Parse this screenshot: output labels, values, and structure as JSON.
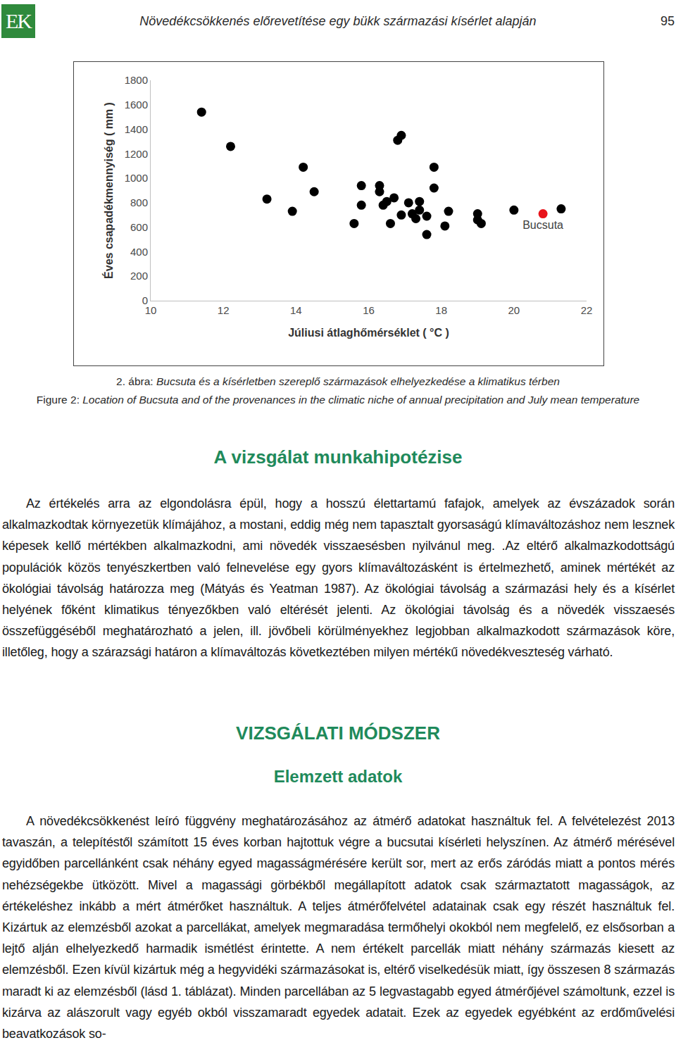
{
  "header": {
    "logo": "EK",
    "title": "Növedékcsökkenés előrevetítése egy bükk származási kísérlet alapján",
    "page": "95"
  },
  "chart_data": {
    "type": "scatter",
    "xlabel": "Júliusi átlaghőmérséklet ( °C )",
    "ylabel": "Éves csapadékmennyiség ( mm )",
    "xlim": [
      10,
      22
    ],
    "xticks": [
      10,
      12,
      14,
      16,
      18,
      20,
      22
    ],
    "ylim": [
      0,
      1800
    ],
    "yticks": [
      0,
      200,
      400,
      600,
      800,
      1000,
      1200,
      1400,
      1600,
      1800
    ],
    "grid": false,
    "marker": "circle",
    "series": [
      {
        "color": "#000000",
        "x": [
          11.4,
          12.2,
          13.2,
          13.9,
          14.2,
          14.5,
          15.6,
          15.8,
          15.8,
          16.3,
          16.3,
          16.4,
          16.5,
          16.6,
          16.7,
          16.8,
          16.9,
          16.9,
          17.1,
          17.2,
          17.3,
          17.4,
          17.4,
          17.6,
          17.6,
          17.8,
          17.8,
          18.1,
          18.2,
          19.0,
          19.0,
          19.1,
          20.0,
          21.3
        ],
        "y": [
          1540,
          1260,
          830,
          730,
          1090,
          890,
          630,
          940,
          780,
          940,
          890,
          780,
          810,
          630,
          840,
          1310,
          1350,
          700,
          800,
          710,
          670,
          810,
          740,
          690,
          540,
          1090,
          920,
          610,
          730,
          710,
          660,
          630,
          740,
          750
        ]
      },
      {
        "name": "Bucsuta",
        "color": "#e8141b",
        "x": [
          20.8
        ],
        "y": [
          710
        ]
      }
    ]
  },
  "caption": {
    "hu": {
      "label": "2. ábra:",
      "text": "Bucsuta és a kísérletben szereplő származások elhelyezkedése a klimatikus térben"
    },
    "en": {
      "label": "Figure 2:",
      "text": "Location of Bucsuta and of the provenances in the climatic niche of annual precipitation and July mean temperature"
    }
  },
  "sections": [
    {
      "heading": "A vizsgálat munkahipotézise",
      "paragraphs": [
        "Az értékelés arra az elgondolásra épül, hogy a hosszú élettartamú fafajok, amelyek az évszázadok során alkalmazkodtak környezetük klímájához, a mostani, eddig még nem tapasztalt gyorsaságú klímaváltozáshoz nem lesznek képesek kellő mértékben alkalmazkodni, ami növedék visszaesésben nyilvánul meg. .Az eltérő alkalmazkodottságú populációk közös tenyészkertben való felnevelése egy gyors klímaváltozásként is értelmezhető, aminek mértékét az ökológiai távolság határozza meg (Mátyás és Yeatman 1987). Az ökológiai távolság a származási hely és a kísérlet helyének főként klimatikus tényezőkben való eltérését jelenti. Az ökológiai távolság és a növedék visszaesés összefüggéséből meghatározható a jelen, ill. jövőbeli körülményekhez legjobban alkalmazkodott származások köre, illetőleg, hogy a szárazsági határon a klímaváltozás következtében milyen mértékű növedékveszteség várható."
      ]
    },
    {
      "heading": "VIZSGÁLATI MÓDSZER",
      "subheading": "Elemzett adatok",
      "paragraphs": [
        "A növedékcsökkenést leíró függvény meghatározásához az átmérő adatokat használtuk fel. A felvételezést 2013 tavaszán, a telepítéstől számított 15 éves korban hajtottuk végre a bucsutai kísérleti helyszínen. Az átmérő mérésével egyidőben parcellánként csak néhány egyed magasságmérésére került sor, mert az erős záródás miatt a pontos mérés nehézségekbe ütközött. Mivel a magassági görbékből megállapított adatok csak származtatott magasságok, az értékeléshez inkább a mért átmérőket használtuk. A teljes átmérőfelvétel adatainak csak egy részét használtuk fel. Kizártuk az elemzésből azokat a parcellákat, amelyek megmaradása termőhelyi okokból nem megfelelő, ez elsősorban a lejtő alján elhelyezkedő harmadik ismétlést érintette. A nem értékelt parcellák miatt néhány származás kiesett az elemzésből. Ezen kívül kizártuk még a hegyvidéki származásokat is, eltérő viselkedésük miatt, így összesen 8 származás maradt ki az elemzésből (lásd 1. táblázat). Minden parcellában az 5 legvastagabb egyed átmérőjével számoltunk, ezzel is kizárva az alászorult vagy egyéb okból visszamaradt egyedek adatait. Ezek az egyedek egyébként az erdőművelési beavatkozások so-"
      ]
    }
  ]
}
